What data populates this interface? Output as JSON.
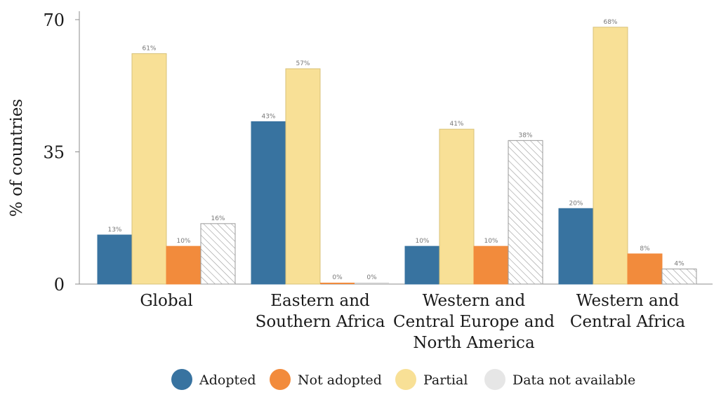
{
  "chart_data": {
    "type": "bar",
    "ylabel": "% of countries",
    "ylim": [
      0,
      70
    ],
    "yticks": [
      0,
      35,
      70
    ],
    "categories": [
      [
        "Global"
      ],
      [
        "Eastern and",
        "Southern Africa"
      ],
      [
        "Western and",
        "Central Europe and",
        "North America"
      ],
      [
        "Western and",
        "Central Africa"
      ]
    ],
    "series": [
      {
        "name": "Adopted",
        "color": "#3873A0",
        "pattern": "solid",
        "values": [
          13,
          43,
          10,
          20
        ],
        "labels": [
          "13%",
          "43%",
          "10%",
          "20%"
        ]
      },
      {
        "name": "Partial",
        "color": "#F8E096",
        "pattern": "solid",
        "values": [
          61,
          57,
          41,
          68
        ],
        "labels": [
          "61%",
          "57%",
          "41%",
          "68%"
        ]
      },
      {
        "name": "Not adopted",
        "color": "#F28B3C",
        "pattern": "solid",
        "values": [
          10,
          0,
          10,
          8
        ],
        "labels": [
          "10%",
          "0%",
          "10%",
          "8%"
        ]
      },
      {
        "name": "Data not available",
        "color": "#E6E6E6",
        "pattern": "hatch",
        "values": [
          16,
          0,
          38,
          4
        ],
        "labels": [
          "16%",
          "0%",
          "38%",
          "4%"
        ]
      }
    ],
    "legend": {
      "placement": "bottom",
      "order": [
        "Adopted",
        "Not adopted",
        "Partial",
        "Data not available"
      ]
    },
    "grid": false
  }
}
